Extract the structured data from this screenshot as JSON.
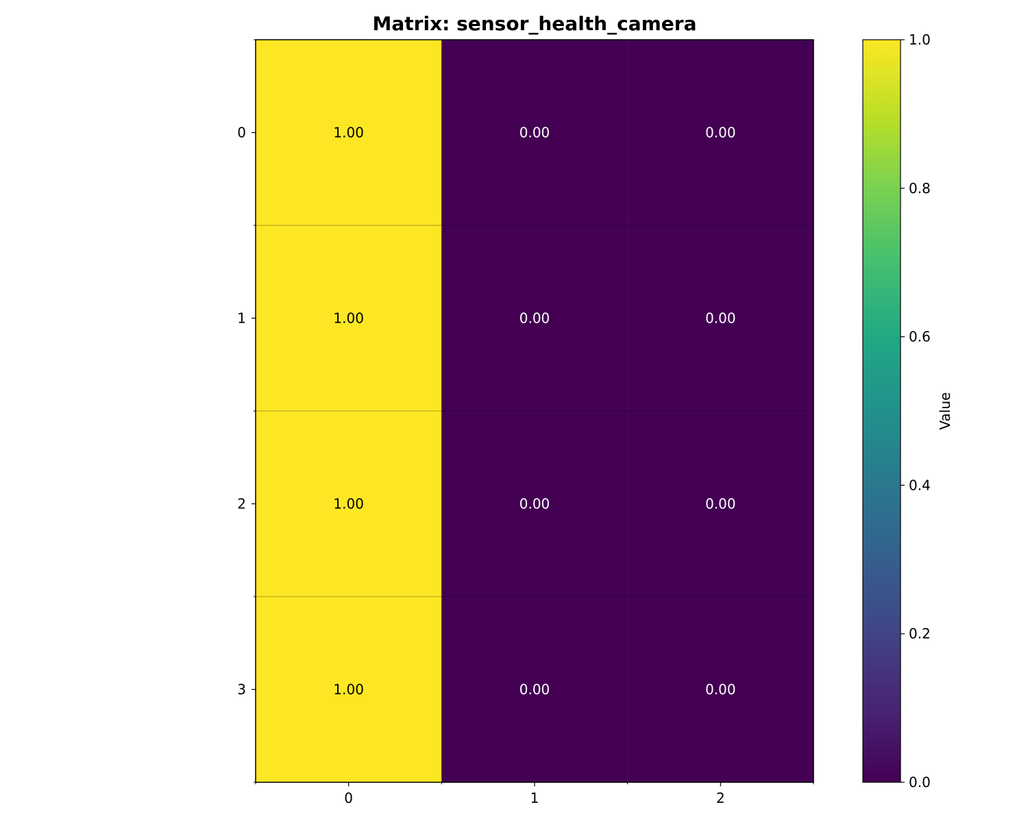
{
  "chart_data": {
    "type": "heatmap",
    "title": "Matrix: sensor_health_camera",
    "rows": [
      "0",
      "1",
      "2",
      "3"
    ],
    "columns": [
      "0",
      "1",
      "2"
    ],
    "values": [
      [
        1.0,
        0.0,
        0.0
      ],
      [
        1.0,
        0.0,
        0.0
      ],
      [
        1.0,
        0.0,
        0.0
      ],
      [
        1.0,
        0.0,
        0.0
      ]
    ],
    "cell_labels": [
      [
        "1.00",
        "0.00",
        "0.00"
      ],
      [
        "1.00",
        "0.00",
        "0.00"
      ],
      [
        "1.00",
        "0.00",
        "0.00"
      ],
      [
        "1.00",
        "0.00",
        "0.00"
      ]
    ],
    "colormap": "viridis",
    "colors": {
      "low": "#440154",
      "high": "#fde725"
    },
    "colorbar": {
      "label": "Value",
      "range": [
        0.0,
        1.0
      ],
      "ticks": [
        0.0,
        0.2,
        0.4,
        0.6,
        0.8,
        1.0
      ],
      "tick_labels": [
        "0.0",
        "0.2",
        "0.4",
        "0.6",
        "0.8",
        "1.0"
      ]
    },
    "grid": true
  }
}
